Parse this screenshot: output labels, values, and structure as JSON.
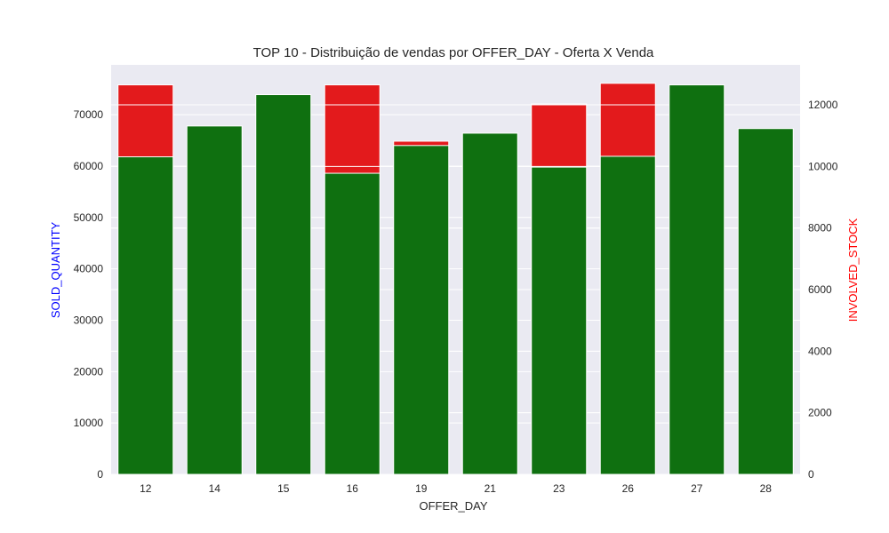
{
  "chart_data": {
    "type": "bar",
    "title": "TOP 10 - Distribuição de vendas por OFFER_DAY - Oferta X Venda",
    "xlabel": "OFFER_DAY",
    "ylabel_left": "SOLD_QUANTITY",
    "ylabel_right": "INVOLVED_STOCK",
    "categories": [
      "12",
      "14",
      "15",
      "16",
      "19",
      "21",
      "23",
      "26",
      "27",
      "28"
    ],
    "series": [
      {
        "name": "SOLD_QUANTITY",
        "axis": "left",
        "color": "#0f7010",
        "values": [
          61800,
          67800,
          73900,
          58600,
          64000,
          66400,
          59800,
          61900,
          75800,
          67300
        ]
      },
      {
        "name": "INVOLVED_STOCK",
        "axis": "right",
        "color": "#e31a1c",
        "values": [
          12650,
          0,
          0,
          12650,
          10820,
          0,
          12030,
          12700,
          0,
          0
        ]
      }
    ],
    "ylim_left": [
      0,
      79700
    ],
    "ylim_right": [
      0,
      13300
    ],
    "yticks_left": [
      "0",
      "10000",
      "20000",
      "30000",
      "40000",
      "50000",
      "60000",
      "70000"
    ],
    "yticks_right": [
      "0",
      "2000",
      "4000",
      "6000",
      "8000",
      "10000",
      "12000"
    ],
    "grid": true,
    "legend": "none",
    "colors": {
      "plot_background": "#eaeaf2",
      "grid": "#ffffff",
      "left_label": "#0000ff",
      "right_label": "#ff0000"
    }
  }
}
